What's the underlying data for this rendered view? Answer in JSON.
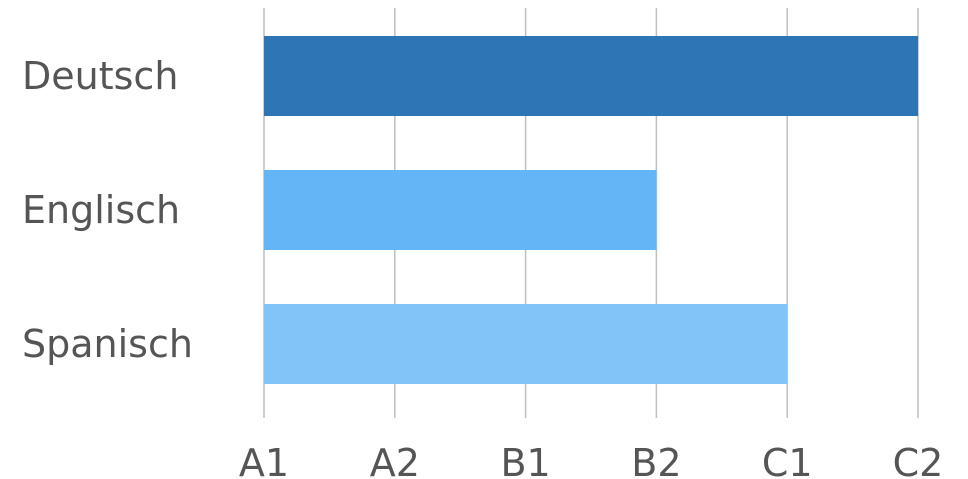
{
  "chart_data": {
    "type": "bar",
    "orientation": "horizontal",
    "categories": [
      "Deutsch",
      "Englisch",
      "Spanisch"
    ],
    "values": [
      5,
      3,
      4
    ],
    "x_ticks": [
      "A1",
      "A2",
      "B1",
      "B2",
      "C1",
      "C2"
    ],
    "xlim": [
      0,
      5
    ],
    "grid": "vertical",
    "colors": [
      "#2E75B6",
      "#63B5F6",
      "#82C4F8"
    ],
    "gridline_color": "#BFBFBF",
    "label_color": "#555555"
  }
}
